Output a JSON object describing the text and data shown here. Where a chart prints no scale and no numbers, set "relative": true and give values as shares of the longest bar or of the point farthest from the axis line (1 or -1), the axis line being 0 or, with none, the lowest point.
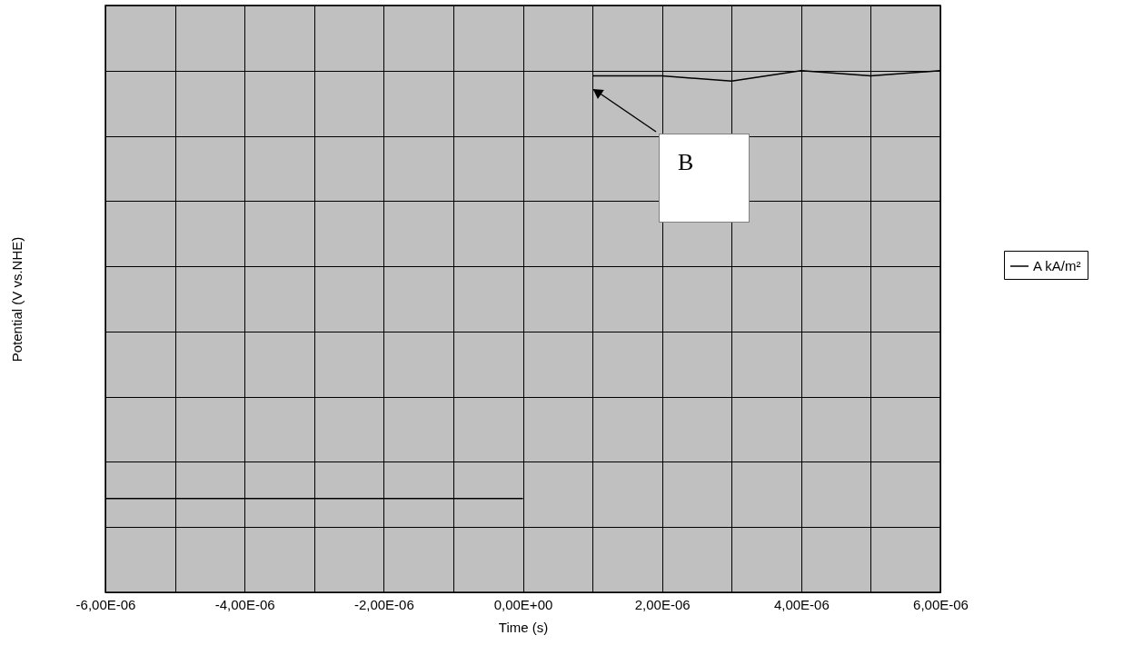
{
  "chart_data": {
    "type": "line",
    "xlabel": "Time (s)",
    "ylabel": "Potential (V vs.NHE)",
    "relative": true,
    "categories": [
      "-6,00E-06",
      null,
      "-4,00E-06",
      null,
      "-2,00E-06",
      null,
      "0,00E+00",
      null,
      "2,00E-06",
      null,
      "4,00E-06",
      null,
      "6,00E-06"
    ],
    "series": [
      {
        "name": "A kA/m²",
        "color": "#000000",
        "values": [
          0.18,
          0.18,
          0.18,
          0.18,
          0.18,
          0.18,
          0.18,
          null,
          null,
          null,
          null,
          null,
          null
        ]
      },
      {
        "color": "#000000",
        "values": [
          null,
          null,
          null,
          null,
          null,
          null,
          null,
          0.99,
          0.99,
          0.98,
          1,
          0.99,
          1
        ]
      }
    ],
    "annotations": [
      "B"
    ],
    "grid": true,
    "legend": "right",
    "line_style": "solid",
    "marker": "none"
  }
}
